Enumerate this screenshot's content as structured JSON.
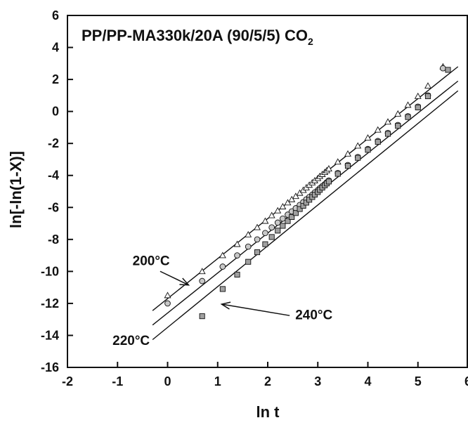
{
  "chart_data": {
    "type": "scatter",
    "title": "PP/PP-MA330k/20A (90/5/5) CO",
    "title_subscript": "2",
    "xlabel": "ln t",
    "ylabel": "ln[-ln(1-X)]",
    "xlim": [
      -2,
      6
    ],
    "ylim": [
      -16,
      6
    ],
    "xticks": [
      -2,
      -1,
      0,
      1,
      2,
      3,
      4,
      5,
      6
    ],
    "yticks": [
      -16,
      -14,
      -12,
      -10,
      -8,
      -6,
      -4,
      -2,
      0,
      2,
      4,
      6
    ],
    "grid": false,
    "series": [
      {
        "name": "200°C",
        "marker": "triangle",
        "color": "#ffffff",
        "x": [
          0.0,
          0.69,
          1.1,
          1.39,
          1.61,
          1.79,
          1.95,
          2.08,
          2.2,
          2.3,
          2.4,
          2.48,
          2.56,
          2.64,
          2.71,
          2.77,
          2.83,
          2.89,
          2.94,
          3.0,
          3.04,
          3.09,
          3.14,
          3.18,
          3.22,
          3.4,
          3.6,
          3.8,
          4.0,
          4.2,
          4.4,
          4.6,
          4.8,
          5.0,
          5.2,
          5.5
        ],
        "y": [
          -11.5,
          -10.0,
          -9.0,
          -8.3,
          -7.7,
          -7.25,
          -6.85,
          -6.5,
          -6.2,
          -5.95,
          -5.7,
          -5.5,
          -5.3,
          -5.1,
          -4.92,
          -4.76,
          -4.6,
          -4.45,
          -4.32,
          -4.18,
          -4.05,
          -3.93,
          -3.8,
          -3.69,
          -3.58,
          -3.15,
          -2.65,
          -2.15,
          -1.65,
          -1.15,
          -0.65,
          -0.15,
          0.4,
          0.95,
          1.6,
          2.8
        ],
        "fit": {
          "slope": 2.5,
          "intercept": -11.7,
          "x_range": [
            -0.3,
            5.8
          ]
        }
      },
      {
        "name": "220°C",
        "marker": "circle",
        "color": "#c8c8c8",
        "x": [
          0.0,
          0.69,
          1.1,
          1.39,
          1.61,
          1.79,
          1.95,
          2.08,
          2.2,
          2.3,
          2.4,
          2.48,
          2.56,
          2.64,
          2.71,
          2.77,
          2.83,
          2.89,
          2.94,
          3.0,
          3.04,
          3.09,
          3.14,
          3.18,
          3.22,
          3.4,
          3.6,
          3.8,
          4.0,
          4.2,
          4.4,
          4.6,
          4.8,
          5.0,
          5.2,
          5.5
        ],
        "y": [
          -12.0,
          -10.6,
          -9.7,
          -9.0,
          -8.45,
          -8.0,
          -7.6,
          -7.25,
          -6.95,
          -6.7,
          -6.45,
          -6.25,
          -6.05,
          -5.85,
          -5.67,
          -5.5,
          -5.35,
          -5.2,
          -5.06,
          -4.92,
          -4.8,
          -4.67,
          -4.55,
          -4.43,
          -4.32,
          -3.85,
          -3.35,
          -2.85,
          -2.35,
          -1.85,
          -1.35,
          -0.85,
          -0.3,
          0.3,
          1.0,
          2.7
        ],
        "fit": {
          "slope": 2.5,
          "intercept": -12.6,
          "x_range": [
            -0.3,
            5.8
          ]
        }
      },
      {
        "name": "240°C",
        "marker": "square",
        "color": "#a0a0a0",
        "x": [
          0.69,
          1.1,
          1.39,
          1.61,
          1.79,
          1.95,
          2.08,
          2.2,
          2.3,
          2.4,
          2.48,
          2.56,
          2.64,
          2.71,
          2.77,
          2.83,
          2.89,
          2.94,
          3.0,
          3.04,
          3.09,
          3.14,
          3.18,
          3.22,
          3.4,
          3.6,
          3.8,
          4.0,
          4.2,
          4.4,
          4.6,
          4.8,
          5.0,
          5.2,
          5.6
        ],
        "y": [
          -12.8,
          -11.1,
          -10.2,
          -9.4,
          -8.8,
          -8.3,
          -7.85,
          -7.45,
          -7.15,
          -6.85,
          -6.6,
          -6.35,
          -6.1,
          -5.9,
          -5.7,
          -5.52,
          -5.35,
          -5.2,
          -5.04,
          -4.9,
          -4.76,
          -4.62,
          -4.5,
          -4.38,
          -3.9,
          -3.4,
          -2.9,
          -2.4,
          -1.9,
          -1.4,
          -0.9,
          -0.35,
          0.25,
          0.95,
          2.6
        ],
        "fit": {
          "slope": 2.55,
          "intercept": -13.5,
          "x_range": [
            -0.3,
            5.8
          ]
        }
      }
    ],
    "annotations": [
      {
        "text": "200°C",
        "label_at": [
          -0.7,
          -9.6
        ],
        "arrow_to": [
          0.42,
          -10.85
        ]
      },
      {
        "text": "220°C",
        "label_at": [
          -1.1,
          -14.6
        ],
        "arrow_to": null
      },
      {
        "text": "240°C",
        "label_at": [
          2.55,
          -13.0
        ],
        "arrow_to": [
          1.08,
          -12.05
        ]
      }
    ]
  }
}
